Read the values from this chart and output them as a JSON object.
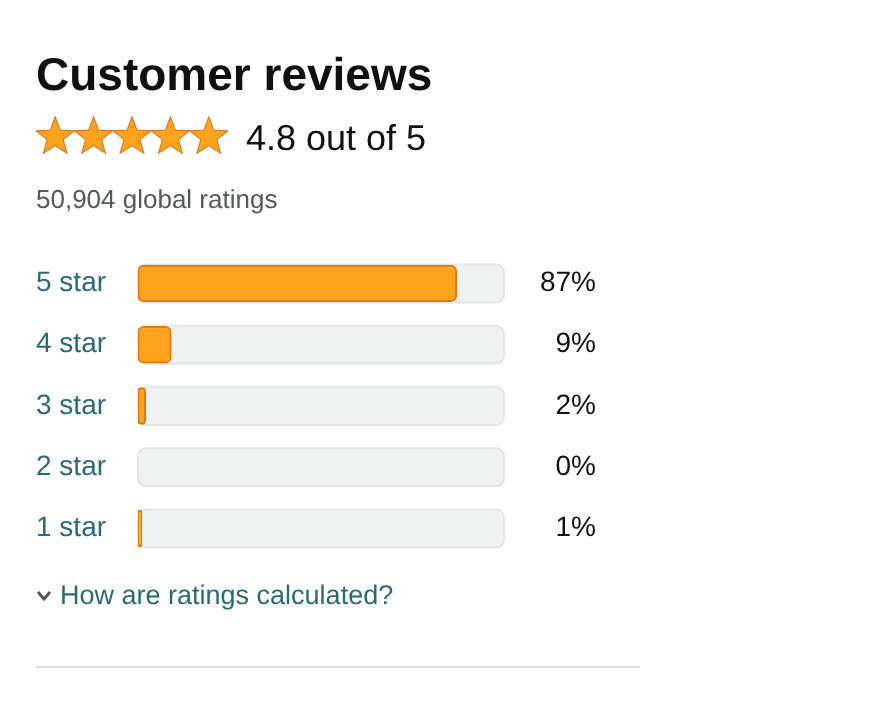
{
  "chart_data": {
    "type": "bar",
    "orientation": "horizontal",
    "title": "Customer reviews",
    "subtitle": "4.8 out of 5",
    "annotations": [
      "50,904 global ratings",
      "How are ratings calculated?"
    ],
    "categories": [
      "5 star",
      "4 star",
      "3 star",
      "2 star",
      "1 star"
    ],
    "values": [
      87,
      9,
      2,
      0,
      1
    ],
    "value_labels": [
      "87%",
      "9%",
      "2%",
      "0%",
      "1%"
    ],
    "color": "#ffa41c",
    "xlim": [
      0,
      100
    ],
    "tick_labels": "y",
    "legend": false
  }
}
